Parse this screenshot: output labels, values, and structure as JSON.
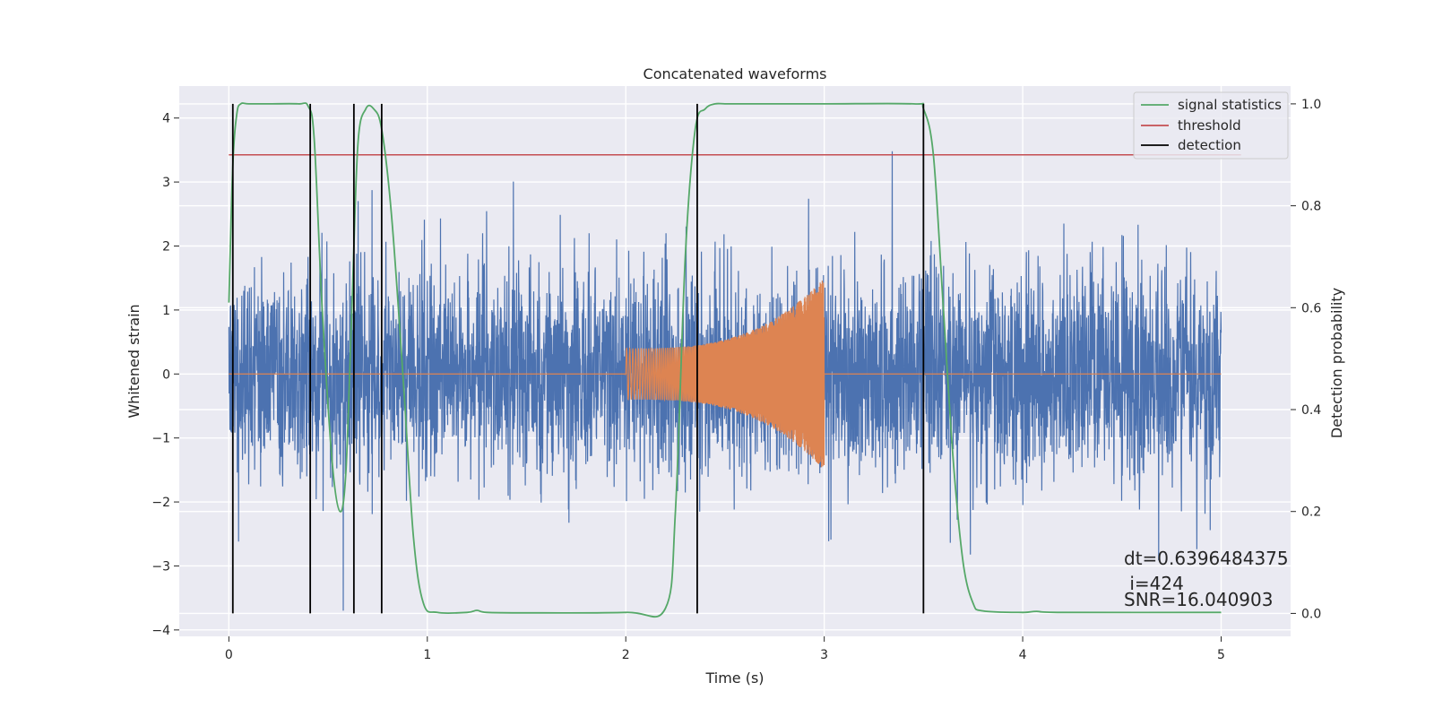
{
  "chart_data": {
    "type": "line",
    "title": "Concatenated waveforms",
    "xlabel": "Time (s)",
    "ylabel": "Whitened strain",
    "y2label": "Detection probability",
    "xlim": [
      -0.25,
      5.35
    ],
    "ylim": [
      -4.1,
      4.5
    ],
    "y2lim": [
      -0.045,
      1.035
    ],
    "xticks": [
      0,
      1,
      2,
      3,
      4,
      5
    ],
    "yticks": [
      -4,
      -3,
      -2,
      -1,
      0,
      1,
      2,
      3,
      4
    ],
    "y2ticks": [
      0.0,
      0.2,
      0.4,
      0.6,
      0.8,
      1.0
    ],
    "y2ticklabels": [
      "0.0",
      "0.2",
      "0.4",
      "0.6",
      "0.8",
      "1.0"
    ],
    "grid": true,
    "legend_position": "top-right",
    "legend": [
      {
        "name": "signal statistics",
        "color": "#55a868"
      },
      {
        "name": "threshold",
        "color": "#c44e52"
      },
      {
        "name": "detection",
        "color": "#000000"
      }
    ],
    "strain_noise": {
      "name": "",
      "color": "#4c72b0",
      "x_range": [
        0,
        5
      ],
      "typical_amplitude": 1.0,
      "peak_range": [
        -3.7,
        3.6
      ]
    },
    "injected_waveform": {
      "name": "",
      "color": "#dd8452",
      "x_range": [
        0,
        5
      ],
      "chirp_start": 2.0,
      "chirp_end": 3.0,
      "start_amplitude": 0.4,
      "end_amplitude": 1.5
    },
    "signal_statistics": {
      "name": "signal statistics",
      "color": "#55a868",
      "x": [
        0.0,
        0.02,
        0.04,
        0.06,
        0.1,
        0.2,
        0.35,
        0.4,
        0.43,
        0.47,
        0.52,
        0.56,
        0.59,
        0.62,
        0.65,
        0.69,
        0.73,
        0.77,
        0.82,
        0.88,
        0.93,
        0.98,
        1.05,
        1.2,
        1.25,
        1.3,
        1.5,
        2.0,
        2.2,
        2.25,
        2.3,
        2.35,
        2.4,
        2.45,
        2.5,
        2.6,
        3.0,
        3.45,
        3.5,
        3.55,
        3.6,
        3.65,
        3.7,
        3.75,
        3.8,
        4.0,
        4.07,
        4.2,
        5.0
      ],
      "y": [
        0.61,
        0.88,
        0.98,
        1.0,
        1.0,
        1.0,
        1.0,
        0.995,
        0.93,
        0.6,
        0.3,
        0.2,
        0.28,
        0.6,
        0.92,
        0.99,
        0.99,
        0.95,
        0.78,
        0.45,
        0.15,
        0.02,
        0.002,
        0.002,
        0.006,
        0.002,
        0.001,
        0.002,
        0.01,
        0.2,
        0.7,
        0.95,
        0.99,
        1.0,
        1.0,
        1.0,
        1.0,
        1.0,
        0.99,
        0.9,
        0.6,
        0.3,
        0.1,
        0.02,
        0.005,
        0.002,
        0.004,
        0.002,
        0.002
      ]
    },
    "threshold": {
      "name": "threshold",
      "color": "#c44e52",
      "value": 0.9,
      "x_range": [
        0,
        5.1
      ]
    },
    "detections": {
      "name": "detection",
      "color": "#000000",
      "x": [
        0.02,
        0.41,
        0.63,
        0.77,
        2.36,
        3.5
      ],
      "y_range": [
        0.0,
        1.0
      ]
    },
    "annotations": [
      "dt=0.6396484375",
      " i=424",
      "SNR=16.040903"
    ]
  }
}
